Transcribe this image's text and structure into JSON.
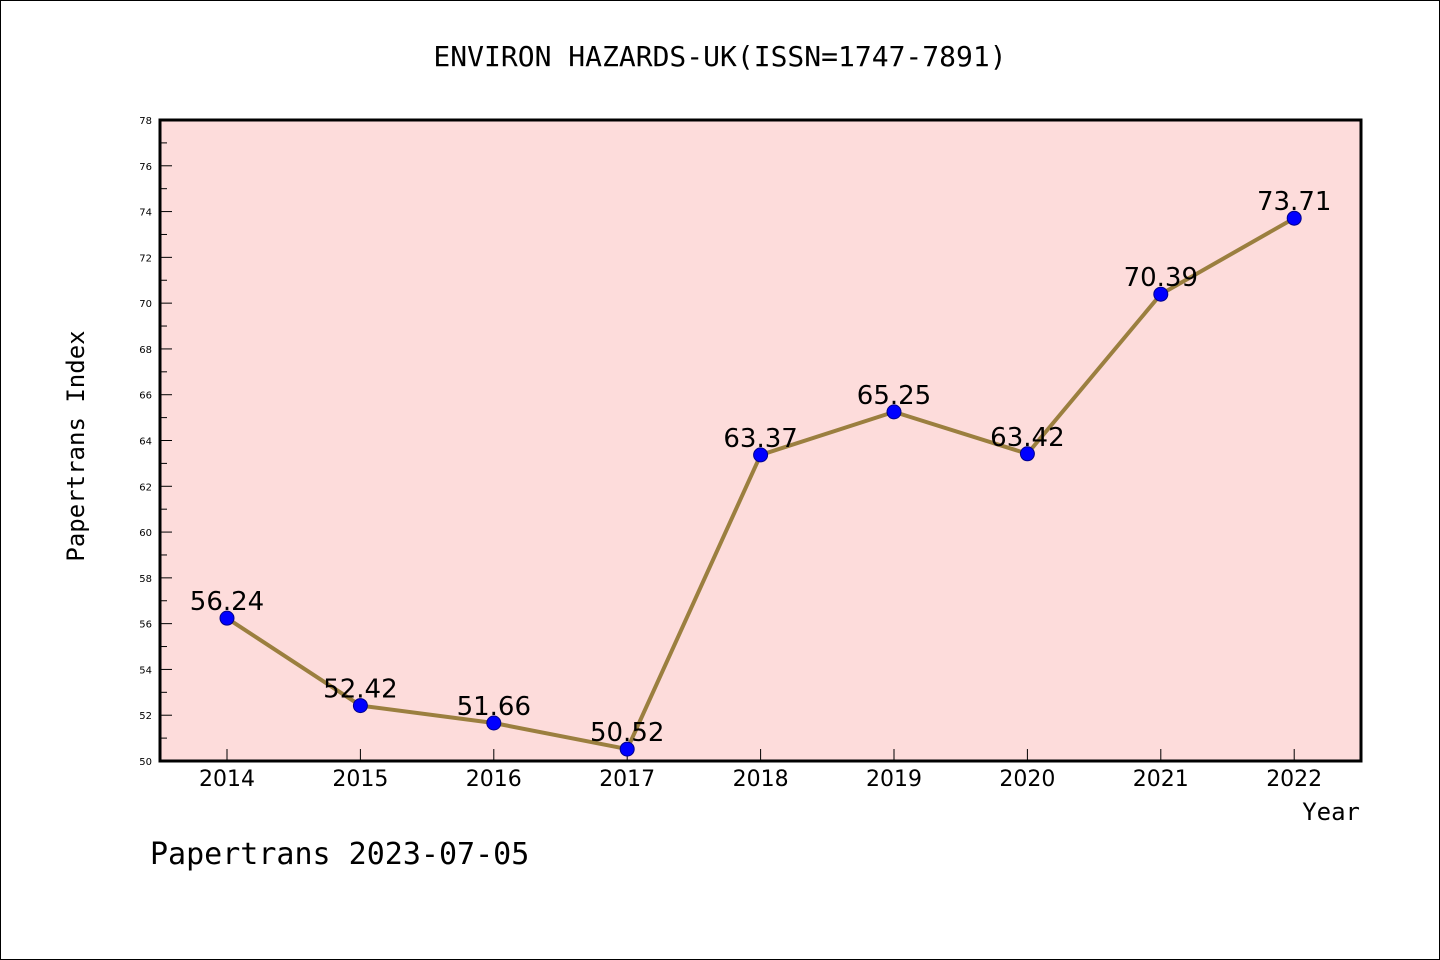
{
  "chart_data": {
    "type": "line",
    "title": "ENVIRON HAZARDS-UK(ISSN=1747-7891)",
    "xlabel": "Year",
    "ylabel": "Papertrans Index",
    "x": [
      "2014",
      "2015",
      "2016",
      "2017",
      "2018",
      "2019",
      "2020",
      "2021",
      "2022"
    ],
    "series": [
      {
        "values": [
          56.24,
          52.42,
          51.66,
          50.52,
          63.37,
          65.25,
          63.42,
          70.39,
          73.71
        ],
        "labels": [
          "56.24",
          "52.42",
          "51.66",
          "50.52",
          "63.37",
          "65.25",
          "63.42",
          "70.39",
          "73.71"
        ]
      }
    ],
    "ylim": [
      50,
      78
    ],
    "yticks": [
      "50",
      "52",
      "54",
      "56",
      "58",
      "60",
      "62",
      "64",
      "66",
      "68",
      "70",
      "72",
      "74",
      "76",
      "78"
    ],
    "grid": false,
    "colors": {
      "plot_background": "#fddcdb",
      "line": "#9b7f3f",
      "marker": "#0000ff",
      "marker_edge": "#00008b"
    }
  },
  "footer": "Papertrans 2023-07-05"
}
